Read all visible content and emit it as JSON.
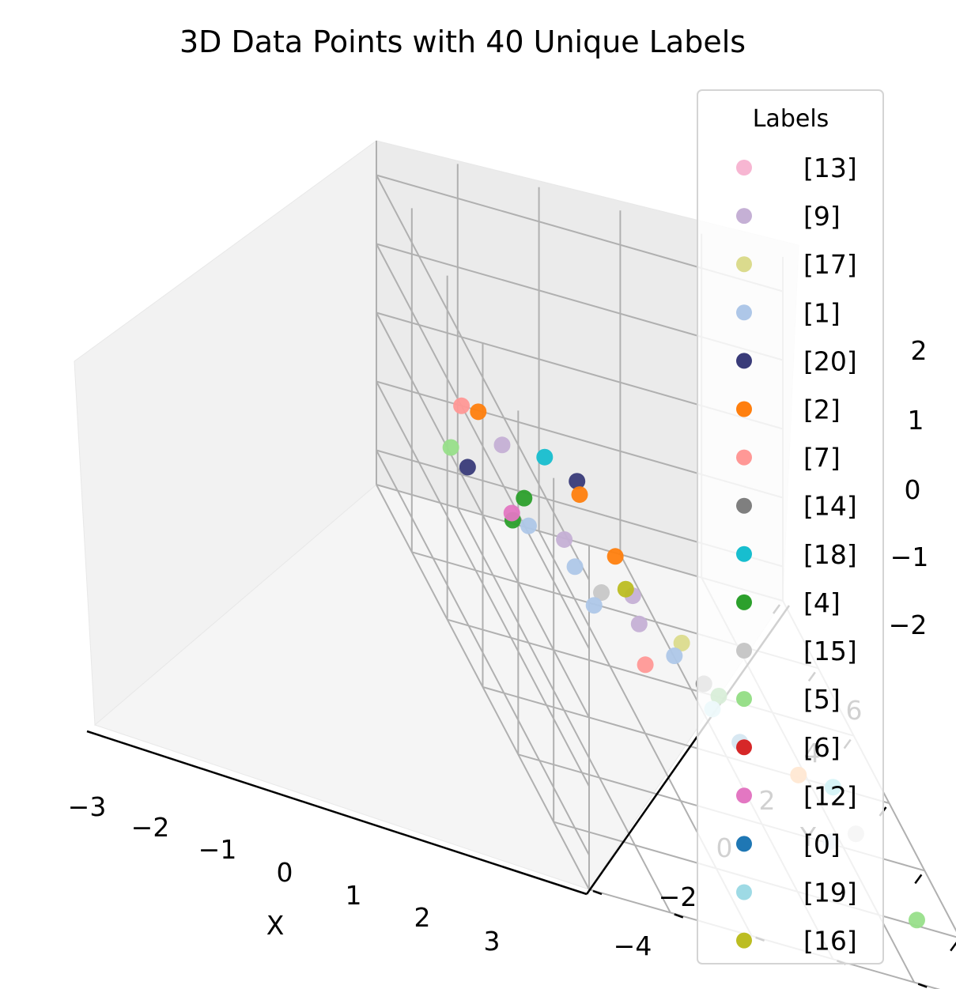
{
  "chart_data": {
    "type": "scatter",
    "title": "3D Data Points with 40 Unique Labels",
    "xlabel": "X",
    "ylabel": "Y",
    "zlabel": "",
    "x_ticks": [
      "−3",
      "−2",
      "−1",
      "0",
      "1",
      "2",
      "3"
    ],
    "y_ticks": [
      "−4",
      "−2",
      "0",
      "2",
      "4",
      "6"
    ],
    "z_ticks": [
      "−2",
      "−1",
      "0",
      "1",
      "2"
    ],
    "legend": {
      "title": "Labels",
      "entries": [
        {
          "label": "[13]",
          "color": "#f7b6d2"
        },
        {
          "label": "[9]",
          "color": "#c5b0d5"
        },
        {
          "label": "[17]",
          "color": "#dbdb8d"
        },
        {
          "label": "[1]",
          "color": "#aec7e8"
        },
        {
          "label": "[20]",
          "color": "#393b79"
        },
        {
          "label": "[2]",
          "color": "#ff7f0e"
        },
        {
          "label": "[7]",
          "color": "#ff9896"
        },
        {
          "label": "[14]",
          "color": "#7f7f7f"
        },
        {
          "label": "[18]",
          "color": "#17becf"
        },
        {
          "label": "[4]",
          "color": "#2ca02c"
        },
        {
          "label": "[15]",
          "color": "#c7c7c7"
        },
        {
          "label": "[5]",
          "color": "#98df8a"
        },
        {
          "label": "[6]",
          "color": "#d62728"
        },
        {
          "label": "[12]",
          "color": "#e377c2"
        },
        {
          "label": "[0]",
          "color": "#1f77b4"
        },
        {
          "label": "[19]",
          "color": "#9edae5"
        },
        {
          "label": "[16]",
          "color": "#bcbd22"
        }
      ]
    },
    "points": [
      {
        "label": "[9]",
        "x": 2.3,
        "y": 6.0,
        "z": 1.9
      },
      {
        "label": "[1]",
        "x": 2.6,
        "y": 6.0,
        "z": 1.8
      },
      {
        "label": "[18]",
        "x": 0.6,
        "y": 5.0,
        "z": 1.6
      },
      {
        "label": "[15]",
        "x": 2.2,
        "y": 5.0,
        "z": 1.2
      },
      {
        "label": "[7]",
        "x": -0.6,
        "y": 6.0,
        "z": 1.0
      },
      {
        "label": "[2]",
        "x": -0.7,
        "y": 5.5,
        "z": 0.9
      },
      {
        "label": "[9]",
        "x": -0.6,
        "y": 5.0,
        "z": 0.6
      },
      {
        "label": "[14]",
        "x": 2.8,
        "y": 3.0,
        "z": 0.8
      },
      {
        "label": "[5]",
        "x": -0.9,
        "y": 6.0,
        "z": 0.1
      },
      {
        "label": "[17]",
        "x": 1.6,
        "y": 2.5,
        "z": 0.3
      },
      {
        "label": "[2]",
        "x": 0.3,
        "y": 3.0,
        "z": 0.2
      },
      {
        "label": "[18]",
        "x": 3.0,
        "y": 0.0,
        "z": 0.0
      },
      {
        "label": "[20]",
        "x": -1.0,
        "y": 5.5,
        "z": -0.2
      },
      {
        "label": "[4]",
        "x": -0.3,
        "y": 5.0,
        "z": -0.2
      },
      {
        "label": "[2]",
        "x": 2.6,
        "y": 0.5,
        "z": -0.3
      },
      {
        "label": "[4]",
        "x": 1.5,
        "y": 1.5,
        "z": -0.4
      },
      {
        "label": "[12]",
        "x": -0.9,
        "y": 4.5,
        "z": -0.6
      },
      {
        "label": "[9]",
        "x": 0.4,
        "y": 2.5,
        "z": -0.6
      },
      {
        "label": "[1]",
        "x": -1.0,
        "y": 4.0,
        "z": -0.8
      },
      {
        "label": "[4]",
        "x": -1.7,
        "y": 3.5,
        "z": -1.0
      },
      {
        "label": "[1]",
        "x": -0.3,
        "y": 3.0,
        "z": -1.1
      },
      {
        "label": "[15]",
        "x": 2.5,
        "y": -1.0,
        "z": -1.0
      },
      {
        "label": "[7]",
        "x": 0.0,
        "y": 2.0,
        "z": -1.5
      },
      {
        "label": "[20]",
        "x": -2.5,
        "y": 1.5,
        "z": -1.2
      },
      {
        "label": "[1]",
        "x": 1.8,
        "y": -1.0,
        "z": -1.8
      },
      {
        "label": "[2]",
        "x": -3.0,
        "y": 1.0,
        "z": -1.8
      },
      {
        "label": "[9]",
        "x": -1.5,
        "y": 1.0,
        "z": -1.8
      },
      {
        "label": "[16]",
        "x": -1.7,
        "y": 1.0,
        "z": -1.9
      },
      {
        "label": "[1]",
        "x": -0.9,
        "y": 0.5,
        "z": -2.0
      },
      {
        "label": "[5]",
        "x": 2.5,
        "y": -2.5,
        "z": -2.0
      },
      {
        "label": "[19]",
        "x": -0.4,
        "y": 0.0,
        "z": -2.2
      },
      {
        "label": "[0]",
        "x": -0.2,
        "y": -0.5,
        "z": -2.4
      }
    ]
  }
}
